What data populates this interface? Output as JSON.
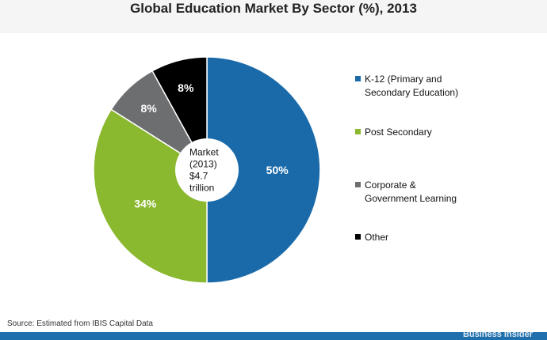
{
  "chart_data": {
    "type": "pie",
    "title": "Global Education Market By Sector (%), 2013",
    "categories": [
      "K-12 (Primary and Secondary Education)",
      "Post Secondary",
      "Corporate & Government Learning",
      "Other"
    ],
    "legend_lines": [
      [
        "K-12 (Primary and",
        "Secondary Education)"
      ],
      [
        "Post Secondary"
      ],
      [
        "Corporate &",
        "Government Learning"
      ],
      [
        "Other"
      ]
    ],
    "values": [
      50,
      34,
      8,
      8
    ],
    "data_labels": [
      "50%",
      "34%",
      "8%",
      "8%"
    ],
    "colors": [
      "#1a6aaa",
      "#8ab82e",
      "#6d6e70",
      "#000000"
    ],
    "center_label": [
      "Market",
      "(2013)",
      "$4.7",
      "trillion"
    ],
    "legend_position": "right",
    "donut": true
  },
  "source": "Source: Estimated from IBIS Capital Data",
  "footer_brand": "Business Insider"
}
